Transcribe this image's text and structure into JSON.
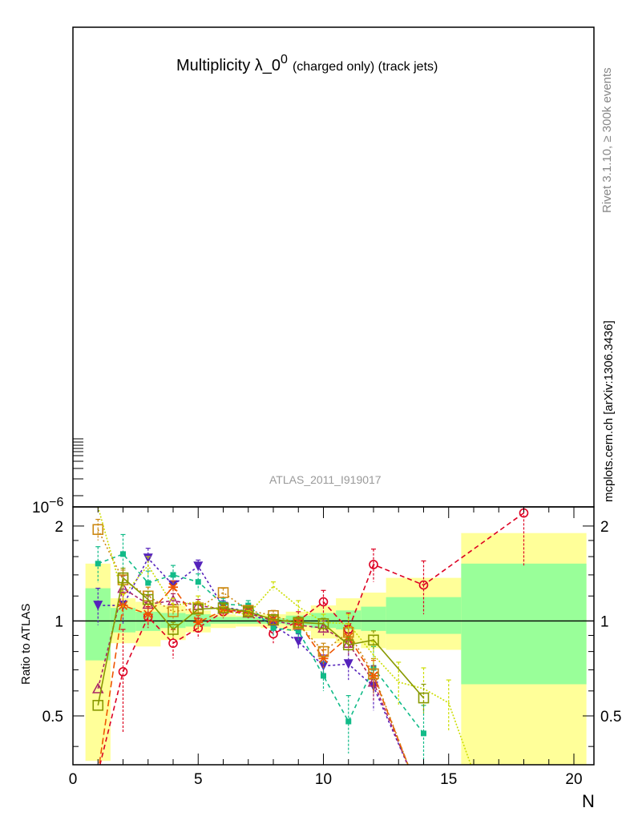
{
  "main_plot": {
    "title_main": "Multiplicity λ_0",
    "title_sup": "0",
    "title_sub": "(charged only) (track jets)",
    "watermark": "ATLAS_2011_I919017",
    "y_tick_label": "10",
    "y_tick_exp": "−6"
  },
  "side_labels": {
    "rivet": "Rivet 3.1.10, ≥ 300k events",
    "mcplots": "mcplots.cern.ch [arXiv:1306.3436]"
  },
  "colors": {
    "band_outer": "#ffff99",
    "band_inner": "#99ff99",
    "series": [
      "#dd0022",
      "#5522bb",
      "#11bb88",
      "#aa2266",
      "#ee5500",
      "#cc8811",
      "#ccdd00",
      "#889900"
    ]
  },
  "chart_data": {
    "type": "line",
    "xlabel": "N",
    "ylabel": "Ratio to ATLAS",
    "xlim": [
      0,
      20.8
    ],
    "ylim": [
      0.35,
      2.3
    ],
    "x_ticks": [
      0,
      5,
      10,
      15,
      20
    ],
    "y_ticks": [
      0.5,
      1,
      2
    ],
    "reference_line": 1,
    "bands": [
      {
        "x0": 0.5,
        "x1": 1.5,
        "inner": [
          0.75,
          1.27
        ],
        "outer": [
          0.36,
          1.52
        ]
      },
      {
        "x0": 1.5,
        "x1": 2.5,
        "inner": [
          0.92,
          1.1
        ],
        "outer": [
          0.85,
          1.18
        ]
      },
      {
        "x0": 2.5,
        "x1": 3.5,
        "inner": [
          0.93,
          1.07
        ],
        "outer": [
          0.83,
          1.15
        ]
      },
      {
        "x0": 3.5,
        "x1": 4.5,
        "inner": [
          0.95,
          1.06
        ],
        "outer": [
          0.87,
          1.12
        ]
      },
      {
        "x0": 4.5,
        "x1": 5.5,
        "inner": [
          0.96,
          1.05
        ],
        "outer": [
          0.92,
          1.08
        ]
      },
      {
        "x0": 5.5,
        "x1": 6.5,
        "inner": [
          0.98,
          1.03
        ],
        "outer": [
          0.95,
          1.05
        ]
      },
      {
        "x0": 6.5,
        "x1": 7.5,
        "inner": [
          0.98,
          1.03
        ],
        "outer": [
          0.96,
          1.04
        ]
      },
      {
        "x0": 7.5,
        "x1": 8.5,
        "inner": [
          0.98,
          1.02
        ],
        "outer": [
          0.95,
          1.05
        ]
      },
      {
        "x0": 8.5,
        "x1": 9.5,
        "inner": [
          0.97,
          1.04
        ],
        "outer": [
          0.93,
          1.07
        ]
      },
      {
        "x0": 9.5,
        "x1": 10.5,
        "inner": [
          0.95,
          1.06
        ],
        "outer": [
          0.88,
          1.12
        ]
      },
      {
        "x0": 10.5,
        "x1": 11.5,
        "inner": [
          0.94,
          1.08
        ],
        "outer": [
          0.85,
          1.18
        ]
      },
      {
        "x0": 11.5,
        "x1": 12.5,
        "inner": [
          0.93,
          1.11
        ],
        "outer": [
          0.82,
          1.23
        ]
      },
      {
        "x0": 12.5,
        "x1": 15.5,
        "inner": [
          0.91,
          1.19
        ],
        "outer": [
          0.81,
          1.37
        ]
      },
      {
        "x0": 15.5,
        "x1": 20.5,
        "inner": [
          0.63,
          1.52
        ],
        "outer": [
          0.33,
          1.9
        ]
      }
    ],
    "series": [
      {
        "color": "#dd0022",
        "marker": "circle",
        "dash": "6,4",
        "x": [
          1,
          2,
          3,
          4,
          5,
          6,
          7,
          8,
          9,
          10,
          11,
          12,
          14,
          18
        ],
        "y": [
          0.33,
          0.69,
          1.03,
          0.85,
          0.95,
          1.07,
          1.06,
          0.91,
          1.0,
          1.15,
          0.94,
          1.51,
          1.3,
          2.2
        ],
        "err": [
          0,
          0.25,
          0.08,
          0.09,
          0.07,
          0.05,
          0.04,
          0.06,
          0.07,
          0.1,
          0.12,
          0.18,
          0.25,
          0.7
        ]
      },
      {
        "color": "#5522bb",
        "marker": "tri-down",
        "dash": "3,3",
        "x": [
          1,
          2,
          3,
          4,
          5,
          6,
          7,
          8,
          9,
          10,
          11,
          12,
          13.5
        ],
        "y": [
          1.12,
          1.12,
          1.58,
          1.3,
          1.49,
          1.11,
          1.07,
          0.97,
          0.86,
          0.72,
          0.73,
          0.62,
          0.33
        ],
        "err": [
          0.15,
          0.14,
          0.12,
          0.08,
          0.07,
          0.05,
          0.04,
          0.05,
          0.05,
          0.06,
          0.08,
          0.1,
          0
        ]
      },
      {
        "color": "#11bb88",
        "marker": "square-filled",
        "dash": "5,4",
        "x": [
          1,
          2,
          3,
          4,
          5,
          6,
          7,
          8,
          9,
          10,
          11,
          12,
          14
        ],
        "y": [
          1.52,
          1.63,
          1.32,
          1.4,
          1.33,
          1.13,
          1.12,
          0.95,
          0.93,
          0.67,
          0.48,
          0.71,
          0.44
        ],
        "err": [
          0.2,
          0.25,
          0.12,
          0.1,
          0.08,
          0.05,
          0.04,
          0.05,
          0.06,
          0.07,
          0.1,
          0.12,
          0.1
        ]
      },
      {
        "color": "#aa2266",
        "marker": "tri-up",
        "dash": "4,3",
        "x": [
          1,
          2,
          3,
          4,
          5,
          6,
          7,
          8,
          9,
          10,
          11,
          12,
          13.5
        ],
        "y": [
          0.61,
          1.27,
          1.13,
          1.16,
          1.12,
          1.09,
          1.06,
          1.0,
          0.97,
          0.95,
          0.85,
          0.64,
          0.33
        ],
        "err": [
          0,
          0.12,
          0.07,
          0.06,
          0.05,
          0.04,
          0.03,
          0.03,
          0.04,
          0.05,
          0.07,
          0.08,
          0
        ]
      },
      {
        "color": "#ee5500",
        "marker": "star",
        "dash": "8,4",
        "x": [
          1,
          2,
          3,
          4,
          5,
          6,
          7,
          8,
          9,
          10,
          11,
          12,
          13.5
        ],
        "y": [
          0.33,
          1.12,
          1.05,
          1.28,
          0.99,
          1.08,
          1.07,
          1.01,
          0.99,
          0.76,
          0.89,
          0.67,
          0.33
        ],
        "err": [
          0,
          0.1,
          0.08,
          0.06,
          0.05,
          0.04,
          0.03,
          0.04,
          0.04,
          0.05,
          0.07,
          0.08,
          0
        ]
      },
      {
        "color": "#cc8811",
        "marker": "square-open",
        "dash": "2,3",
        "x": [
          1,
          2,
          3,
          4,
          5,
          6,
          7,
          8,
          9,
          10,
          11,
          12,
          13.5
        ],
        "y": [
          1.95,
          1.35,
          1.2,
          1.07,
          1.1,
          1.23,
          1.08,
          1.04,
          0.98,
          0.8,
          0.92,
          0.68,
          0.33
        ],
        "err": [
          0.15,
          0.1,
          0.08,
          0.06,
          0.05,
          0.04,
          0.03,
          0.04,
          0.04,
          0.05,
          0.06,
          0.08,
          0
        ]
      },
      {
        "color": "#ccdd00",
        "marker": "none",
        "dash": "2,2",
        "x": [
          1,
          2,
          3,
          4,
          5,
          6,
          7,
          8,
          9,
          10,
          11,
          12,
          13,
          14,
          15,
          16
        ],
        "y": [
          2.3,
          1.2,
          1.5,
          1.12,
          1.15,
          1.07,
          1.05,
          1.29,
          1.11,
          0.99,
          0.98,
          0.78,
          0.64,
          0.61,
          0.55,
          0.33
        ],
        "err": [
          0,
          0.1,
          0.1,
          0.06,
          0.05,
          0.04,
          0.03,
          0.04,
          0.05,
          0.06,
          0.07,
          0.08,
          0.1,
          0.1,
          0.1,
          0
        ]
      },
      {
        "color": "#889900",
        "marker": "square-open",
        "dash": "",
        "x": [
          1,
          2,
          3,
          4,
          5,
          6,
          7,
          8,
          9,
          10,
          11,
          12,
          14
        ],
        "y": [
          0.54,
          1.37,
          1.17,
          0.94,
          1.09,
          1.1,
          1.07,
          1.01,
          0.99,
          0.98,
          0.84,
          0.87,
          0.57
        ],
        "err": [
          0,
          0.1,
          0.07,
          0.05,
          0.04,
          0.03,
          0.03,
          0.03,
          0.03,
          0.04,
          0.05,
          0.06,
          0.06
        ]
      }
    ]
  }
}
